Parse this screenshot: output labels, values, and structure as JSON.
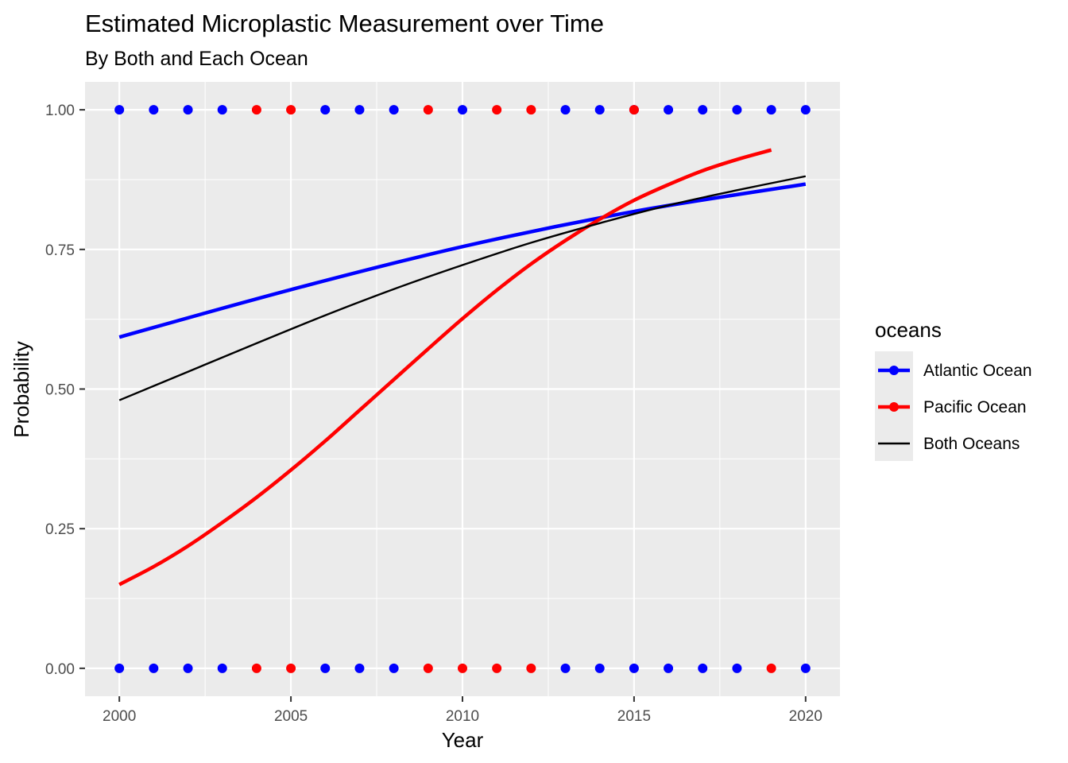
{
  "chart_data": {
    "type": "scatter",
    "title": "Estimated Microplastic Measurement over Time",
    "subtitle": "By Both and Each Ocean",
    "xlabel": "Year",
    "ylabel": "Probability",
    "xlim": [
      1999,
      2021
    ],
    "ylim": [
      -0.05,
      1.05
    ],
    "x_ticks": [
      2000,
      2005,
      2010,
      2015,
      2020
    ],
    "x_tick_labels": [
      "2000",
      "2005",
      "2010",
      "2015",
      "2020"
    ],
    "y_ticks": [
      0,
      0.25,
      0.5,
      0.75,
      1
    ],
    "y_tick_labels": [
      "0.00",
      "0.25",
      "0.50",
      "0.75",
      "1.00"
    ],
    "grid": true,
    "legend": {
      "title": "oceans",
      "position": "right",
      "entries": [
        {
          "label": "Atlantic Ocean",
          "color": "#0000ff",
          "style": "line-point"
        },
        {
          "label": "Pacific Ocean",
          "color": "#ff0000",
          "style": "line-point"
        },
        {
          "label": "Both Oceans",
          "color": "#000000",
          "style": "line"
        }
      ]
    },
    "series": [
      {
        "name": "Atlantic Ocean",
        "kind": "points",
        "color": "#0000ff",
        "points": [
          {
            "x": 2000,
            "y": 1
          },
          {
            "x": 2001,
            "y": 1
          },
          {
            "x": 2002,
            "y": 1
          },
          {
            "x": 2003,
            "y": 1
          },
          {
            "x": 2006,
            "y": 1
          },
          {
            "x": 2007,
            "y": 1
          },
          {
            "x": 2008,
            "y": 1
          },
          {
            "x": 2010,
            "y": 1
          },
          {
            "x": 2013,
            "y": 1
          },
          {
            "x": 2014,
            "y": 1
          },
          {
            "x": 2015,
            "y": 1
          },
          {
            "x": 2016,
            "y": 1
          },
          {
            "x": 2017,
            "y": 1
          },
          {
            "x": 2018,
            "y": 1
          },
          {
            "x": 2019,
            "y": 1
          },
          {
            "x": 2020,
            "y": 1
          },
          {
            "x": 2000,
            "y": 0
          },
          {
            "x": 2001,
            "y": 0
          },
          {
            "x": 2002,
            "y": 0
          },
          {
            "x": 2003,
            "y": 0
          },
          {
            "x": 2006,
            "y": 0
          },
          {
            "x": 2007,
            "y": 0
          },
          {
            "x": 2008,
            "y": 0
          },
          {
            "x": 2013,
            "y": 0
          },
          {
            "x": 2014,
            "y": 0
          },
          {
            "x": 2015,
            "y": 0
          },
          {
            "x": 2016,
            "y": 0
          },
          {
            "x": 2017,
            "y": 0
          },
          {
            "x": 2018,
            "y": 0
          },
          {
            "x": 2020,
            "y": 0
          }
        ]
      },
      {
        "name": "Pacific Ocean",
        "kind": "points",
        "color": "#ff0000",
        "points": [
          {
            "x": 2004,
            "y": 1
          },
          {
            "x": 2005,
            "y": 1
          },
          {
            "x": 2009,
            "y": 1
          },
          {
            "x": 2011,
            "y": 1
          },
          {
            "x": 2012,
            "y": 1
          },
          {
            "x": 2015,
            "y": 1
          },
          {
            "x": 2004,
            "y": 0
          },
          {
            "x": 2005,
            "y": 0
          },
          {
            "x": 2009,
            "y": 0
          },
          {
            "x": 2010,
            "y": 0
          },
          {
            "x": 2011,
            "y": 0
          },
          {
            "x": 2012,
            "y": 0
          },
          {
            "x": 2019,
            "y": 0
          }
        ]
      },
      {
        "name": "Atlantic Ocean",
        "kind": "curve",
        "color": "#0000ff",
        "points": [
          {
            "x": 2000,
            "y": 0.593
          },
          {
            "x": 2005,
            "y": 0.678
          },
          {
            "x": 2010,
            "y": 0.755
          },
          {
            "x": 2015,
            "y": 0.818
          },
          {
            "x": 2020,
            "y": 0.867
          }
        ]
      },
      {
        "name": "Pacific Ocean",
        "kind": "curve",
        "color": "#ff0000",
        "points": [
          {
            "x": 2000,
            "y": 0.15
          },
          {
            "x": 2001,
            "y": 0.182
          },
          {
            "x": 2002,
            "y": 0.219
          },
          {
            "x": 2003,
            "y": 0.261
          },
          {
            "x": 2004,
            "y": 0.306
          },
          {
            "x": 2005,
            "y": 0.355
          },
          {
            "x": 2006,
            "y": 0.407
          },
          {
            "x": 2007,
            "y": 0.462
          },
          {
            "x": 2008,
            "y": 0.517
          },
          {
            "x": 2009,
            "y": 0.572
          },
          {
            "x": 2010,
            "y": 0.626
          },
          {
            "x": 2011,
            "y": 0.677
          },
          {
            "x": 2012,
            "y": 0.724
          },
          {
            "x": 2013,
            "y": 0.766
          },
          {
            "x": 2014,
            "y": 0.804
          },
          {
            "x": 2015,
            "y": 0.838
          },
          {
            "x": 2016,
            "y": 0.866
          },
          {
            "x": 2017,
            "y": 0.891
          },
          {
            "x": 2018,
            "y": 0.911
          },
          {
            "x": 2019,
            "y": 0.928
          }
        ]
      },
      {
        "name": "Both Oceans",
        "kind": "curve",
        "color": "#000000",
        "points": [
          {
            "x": 2000,
            "y": 0.48
          },
          {
            "x": 2002,
            "y": 0.531
          },
          {
            "x": 2004,
            "y": 0.582
          },
          {
            "x": 2006,
            "y": 0.632
          },
          {
            "x": 2008,
            "y": 0.679
          },
          {
            "x": 2010,
            "y": 0.722
          },
          {
            "x": 2012,
            "y": 0.762
          },
          {
            "x": 2014,
            "y": 0.797
          },
          {
            "x": 2016,
            "y": 0.829
          },
          {
            "x": 2018,
            "y": 0.856
          },
          {
            "x": 2020,
            "y": 0.881
          }
        ]
      }
    ]
  }
}
